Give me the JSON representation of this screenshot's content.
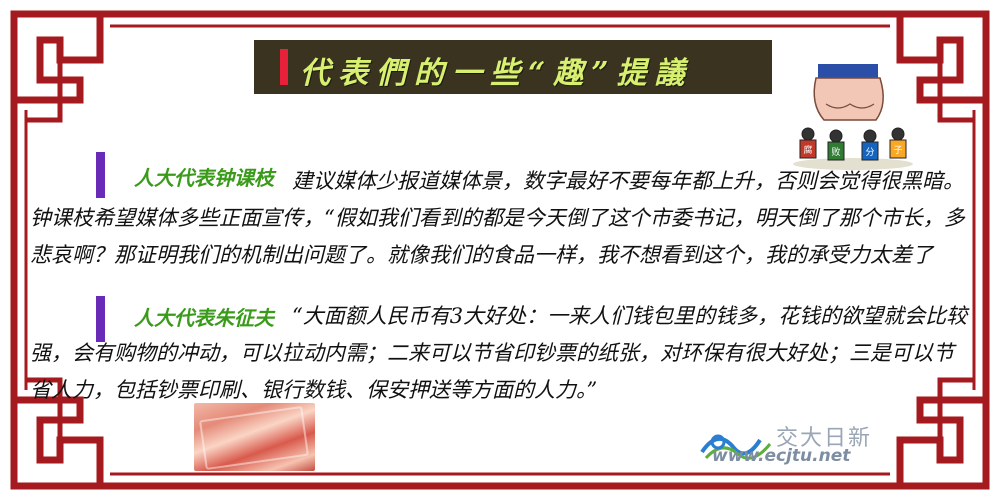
{
  "title": "代表們的一些“趣”提議",
  "colors": {
    "frame": "#a41a1e",
    "title_bg": "#3a3320",
    "title_text": "#d8f070",
    "title_accent": "#e8203a",
    "speaker_bar": "#6a2ab8",
    "speaker_name": "#3a9a1a"
  },
  "sections": [
    {
      "speaker": "人大代表钟课枝",
      "text": "建议媒体少报道媒体景，数字最好不要每年都上升，否则会觉得很黑暗。钟课枝希望媒体多些正面宣传，“假如我们看到的都是今天倒了这个市委书记，明天倒了那个市长，多悲哀啊？那证明我们的机制出问题了。就像我们的食品一样，我不想看到这个，我的承受力太差了"
    },
    {
      "speaker": "人大代表朱征夫",
      "text": "“大面额人民币有3大好处：一来人们钱包里的钱多，花钱的欲望就会比较强，会有购物的冲动，可以拉动内需；二来可以节省印钞票的纸张，对环保有很大好处；三是可以节省人力，包括钞票印刷、银行数钱、保安押送等方面的人力。”"
    }
  ],
  "cartoon_labels": [
    "腐",
    "败",
    "分",
    "子"
  ],
  "watermark": {
    "cn": "交大日新",
    "en": "www.ecjtu.net"
  },
  "icons": {
    "frame": "chinese-fret-frame",
    "cartoon": "fist-crushing-officials-cartoon",
    "photo": "banknotes-photo",
    "logo": "ecjtu-wave-logo"
  }
}
